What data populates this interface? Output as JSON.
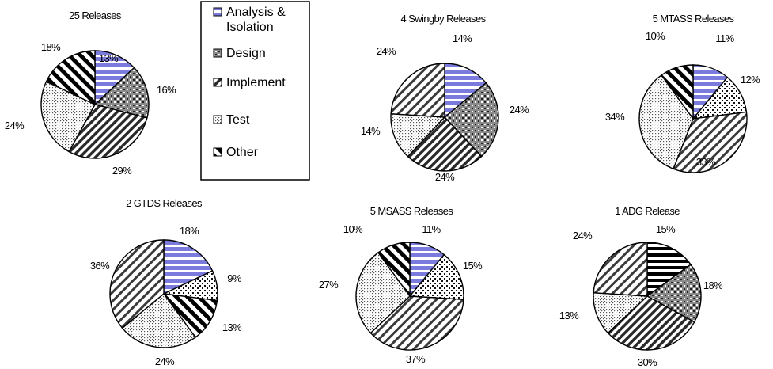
{
  "legend": {
    "items": [
      {
        "label_lines": [
          "Analysis &",
          "Isolation"
        ],
        "pattern": "hstripes-blue"
      },
      {
        "label_lines": [
          "Design"
        ],
        "pattern": "checker"
      },
      {
        "label_lines": [
          "Implement"
        ],
        "pattern": "diag-dense"
      },
      {
        "label_lines": [
          "Test"
        ],
        "pattern": "dots"
      },
      {
        "label_lines": [
          "Other"
        ],
        "pattern": "diag-bold"
      }
    ]
  },
  "colors": {
    "analysis": "#7b7bde",
    "outline": "#000000",
    "background": "#ffffff"
  },
  "chart_data": [
    {
      "type": "pie",
      "title": "25 Releases",
      "slices": [
        {
          "name": "Analysis & Isolation",
          "value": 13,
          "label": "13%",
          "pattern": "hstripes-blue"
        },
        {
          "name": "Design",
          "value": 16,
          "label": "16%",
          "pattern": "checker"
        },
        {
          "name": "Implement",
          "value": 29,
          "label": "29%",
          "pattern": "diag-dense"
        },
        {
          "name": "Test",
          "value": 24,
          "label": "24%",
          "pattern": "dots"
        },
        {
          "name": "Other",
          "value": 18,
          "label": "18%",
          "pattern": "diag-bold"
        }
      ]
    },
    {
      "type": "pie",
      "title": "4 Swingby Releases",
      "slices": [
        {
          "name": "Analysis & Isolation",
          "value": 14,
          "label": "14%",
          "pattern": "hstripes-blue"
        },
        {
          "name": "Design",
          "value": 24,
          "label": "24%",
          "pattern": "checker"
        },
        {
          "name": "Implement",
          "value": 24,
          "label": "24%",
          "pattern": "diag-dense"
        },
        {
          "name": "Test",
          "value": 14,
          "label": "14%",
          "pattern": "dots"
        },
        {
          "name": "Other",
          "value": 24,
          "label": "24%",
          "pattern": "diag-wide"
        }
      ]
    },
    {
      "type": "pie",
      "title": "5 MTASS Releases",
      "slices": [
        {
          "name": "Analysis & Isolation",
          "value": 11,
          "label": "11%",
          "pattern": "hstripes-blue"
        },
        {
          "name": "Design",
          "value": 12,
          "label": "12%",
          "pattern": "dots-coarse"
        },
        {
          "name": "Implement",
          "value": 33,
          "label": "33%",
          "pattern": "diag-wide"
        },
        {
          "name": "Test",
          "value": 34,
          "label": "34%",
          "pattern": "dots"
        },
        {
          "name": "Other",
          "value": 10,
          "label": "10%",
          "pattern": "diag-bold"
        }
      ]
    },
    {
      "type": "pie",
      "title": "2 GTDS Releases",
      "slices": [
        {
          "name": "Analysis & Isolation",
          "value": 18,
          "label": "18%",
          "pattern": "hstripes-blue"
        },
        {
          "name": "Design",
          "value": 9,
          "label": "9%",
          "pattern": "dots-coarse"
        },
        {
          "name": "Implement",
          "value": 13,
          "label": "13%",
          "pattern": "diag-bold"
        },
        {
          "name": "Test",
          "value": 24,
          "label": "24%",
          "pattern": "dots"
        },
        {
          "name": "Other",
          "value": 36,
          "label": "36%",
          "pattern": "diag-wide"
        }
      ]
    },
    {
      "type": "pie",
      "title": "5 MSASS Releases",
      "slices": [
        {
          "name": "Analysis & Isolation",
          "value": 11,
          "label": "11%",
          "pattern": "hstripes-blue"
        },
        {
          "name": "Design",
          "value": 15,
          "label": "15%",
          "pattern": "dots-coarse"
        },
        {
          "name": "Implement",
          "value": 37,
          "label": "37%",
          "pattern": "diag-wide"
        },
        {
          "name": "Test",
          "value": 27,
          "label": "27%",
          "pattern": "dots"
        },
        {
          "name": "Other",
          "value": 10,
          "label": "10%",
          "pattern": "diag-bold"
        }
      ]
    },
    {
      "type": "pie",
      "title": "1 ADG Release",
      "slices": [
        {
          "name": "Analysis & Isolation",
          "value": 15,
          "label": "15%",
          "pattern": "hstripes-bw"
        },
        {
          "name": "Design",
          "value": 18,
          "label": "18%",
          "pattern": "checker"
        },
        {
          "name": "Implement",
          "value": 30,
          "label": "30%",
          "pattern": "diag-dense"
        },
        {
          "name": "Test",
          "value": 13,
          "label": "13%",
          "pattern": "dots"
        },
        {
          "name": "Other",
          "value": 24,
          "label": "24%",
          "pattern": "diag-wide"
        }
      ]
    }
  ]
}
